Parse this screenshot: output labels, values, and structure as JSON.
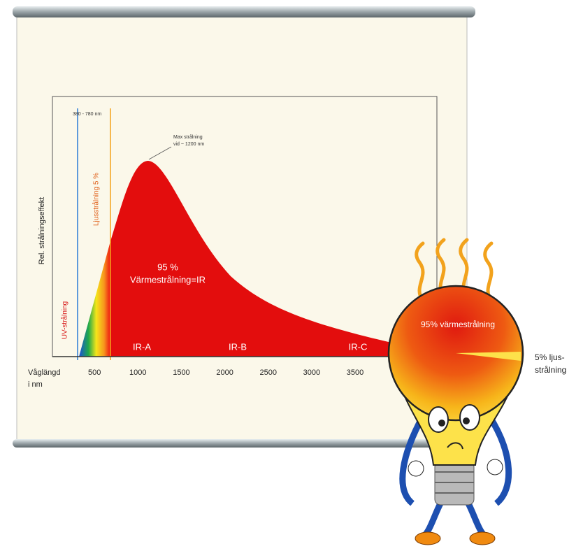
{
  "chart": {
    "range_label": "380 - 780 nm",
    "peak_label": [
      "Max strålning",
      "vid ~ 1200 nm"
    ],
    "y_axis_label": "Rel. strålningseffekt",
    "light_label": "Ljusstrålning 5 %",
    "uv_label": "UV-strålning",
    "ir_share": "95 %",
    "ir_label": "Värmestrålning=IR",
    "bands": [
      "IR-A",
      "IR-B",
      "IR-C"
    ],
    "x_axis_label": [
      "Våglängd",
      "i nm"
    ],
    "xticks": [
      500,
      1000,
      1500,
      2000,
      2500,
      3000,
      3500
    ]
  },
  "bulb": {
    "heat_label": "95% värmestrålning",
    "light_label": [
      "5% ljus-",
      "strålning"
    ]
  }
}
